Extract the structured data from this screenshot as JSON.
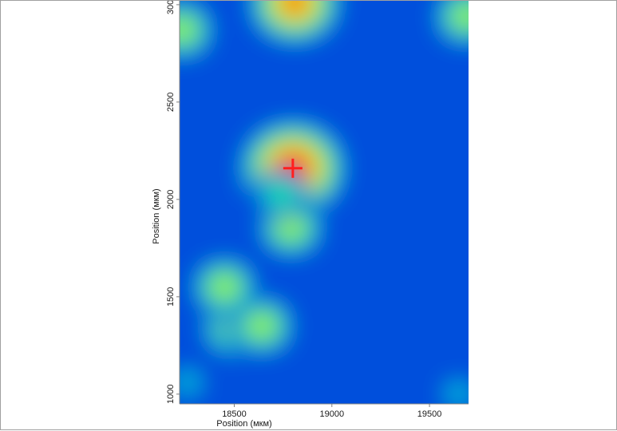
{
  "chart_data": {
    "type": "heatmap",
    "xlabel": "Position (мкм)",
    "ylabel": "Position (мкм)",
    "xlim": [
      18220,
      19700
    ],
    "ylim": [
      950,
      3020
    ],
    "x_ticks": [
      18500,
      19000,
      19500
    ],
    "y_ticks": [
      1000,
      1500,
      2000,
      2500,
      3000
    ],
    "colormap": [
      "#0a14c8",
      "#0050dc",
      "#00b4d8",
      "#28e0a0",
      "#96f03c",
      "#f0e614",
      "#ff5a00",
      "#ff1e1e"
    ],
    "background_value": 0.12,
    "hotspots": [
      {
        "x": 18800,
        "y": 2160,
        "value": 1.0
      },
      {
        "x": 18790,
        "y": 1855,
        "value": 0.62
      },
      {
        "x": 18740,
        "y": 2030,
        "value": 0.48
      },
      {
        "x": 18500,
        "y": 1340,
        "value": 0.6
      },
      {
        "x": 18640,
        "y": 1350,
        "value": 0.55
      },
      {
        "x": 18450,
        "y": 1550,
        "value": 0.5
      },
      {
        "x": 18810,
        "y": 3010,
        "value": 0.8
      },
      {
        "x": 18230,
        "y": 2870,
        "value": 0.55
      },
      {
        "x": 19690,
        "y": 2940,
        "value": 0.5
      },
      {
        "x": 19650,
        "y": 1000,
        "value": 0.35
      },
      {
        "x": 18260,
        "y": 1060,
        "value": 0.35
      }
    ],
    "marker": {
      "x": 18800,
      "y": 2160,
      "shape": "cross",
      "color": "#ff1e1e"
    },
    "grid": false
  }
}
